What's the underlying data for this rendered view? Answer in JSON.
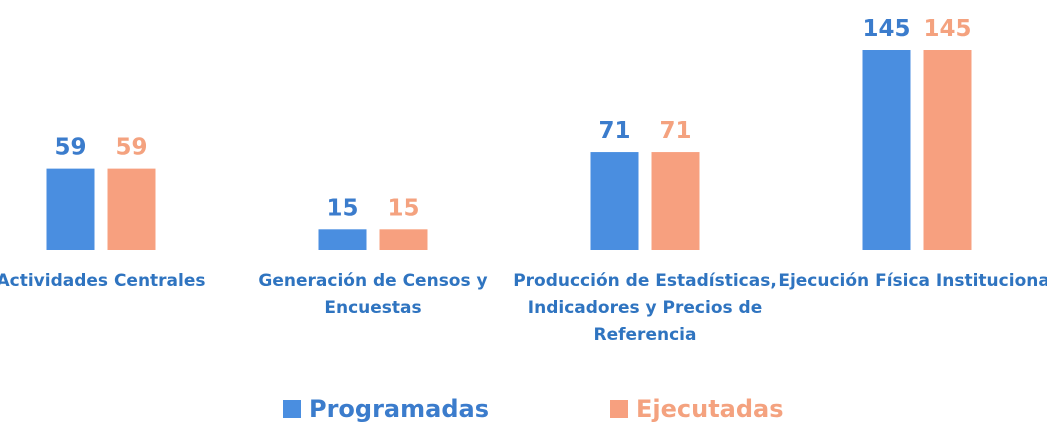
{
  "chart_data": {
    "type": "bar",
    "categories": [
      "Actividades Centrales",
      "Generación de Censos y Encuestas",
      "Producción de Estadísticas, Indicadores y Precios de Referencia",
      "Ejecución Física Institucional"
    ],
    "series": [
      {
        "name": "Programadas",
        "color": "#4a8ee0",
        "values": [
          59,
          15,
          71,
          145
        ]
      },
      {
        "name": "Ejecutadas",
        "color": "#f7a07f",
        "values": [
          59,
          15,
          71,
          145
        ]
      }
    ]
  }
}
